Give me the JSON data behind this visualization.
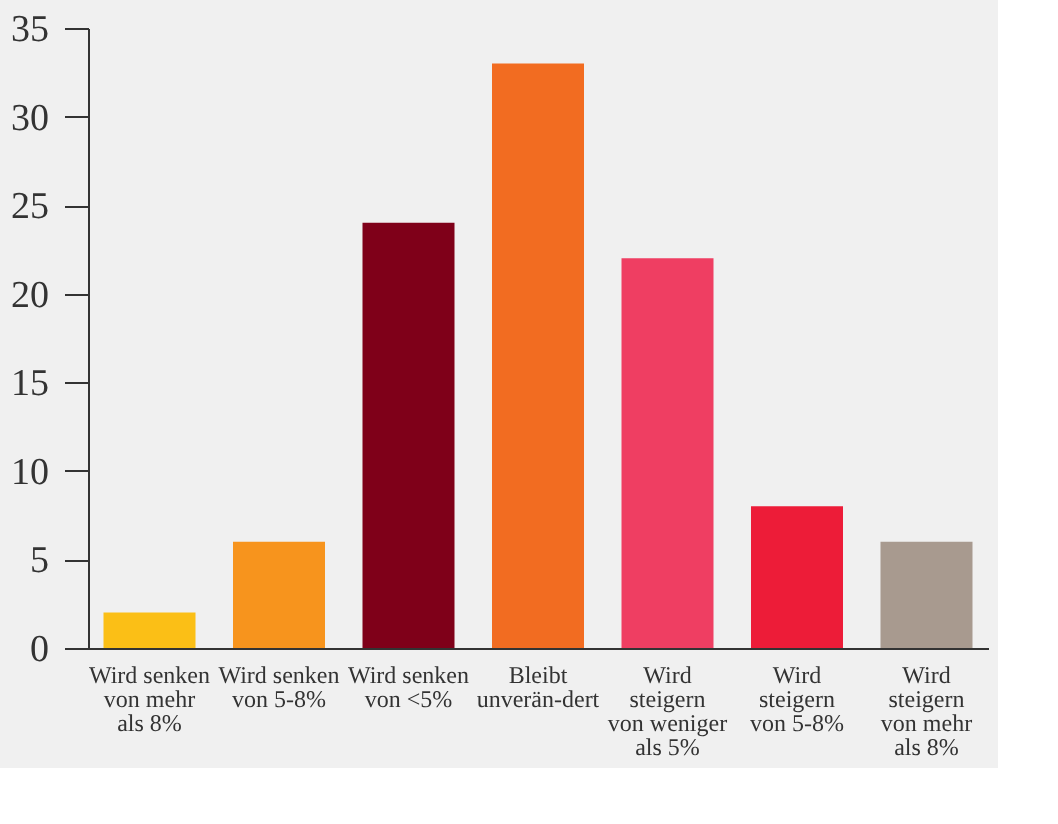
{
  "chart_data": {
    "type": "bar",
    "categories": [
      "Wird senken von mehr als 8%",
      "Wird senken von 5-8%",
      "Wird senken von <5%",
      "Bleibt unverän-dert",
      "Wird steigern von weniger als 5%",
      "Wird steigern von 5-8%",
      "Wird steigern von mehr als 8%"
    ],
    "values": [
      2,
      6,
      24,
      33,
      22,
      8,
      6
    ],
    "colors": [
      "#fbbf16",
      "#f7941d",
      "#7f0019",
      "#f26c21",
      "#ef3e62",
      "#ed1c38",
      "#a89a8f"
    ],
    "ylim": [
      0,
      35
    ],
    "yticks": [
      0,
      5,
      10,
      15,
      20,
      25,
      30,
      35
    ],
    "grid": false
  }
}
